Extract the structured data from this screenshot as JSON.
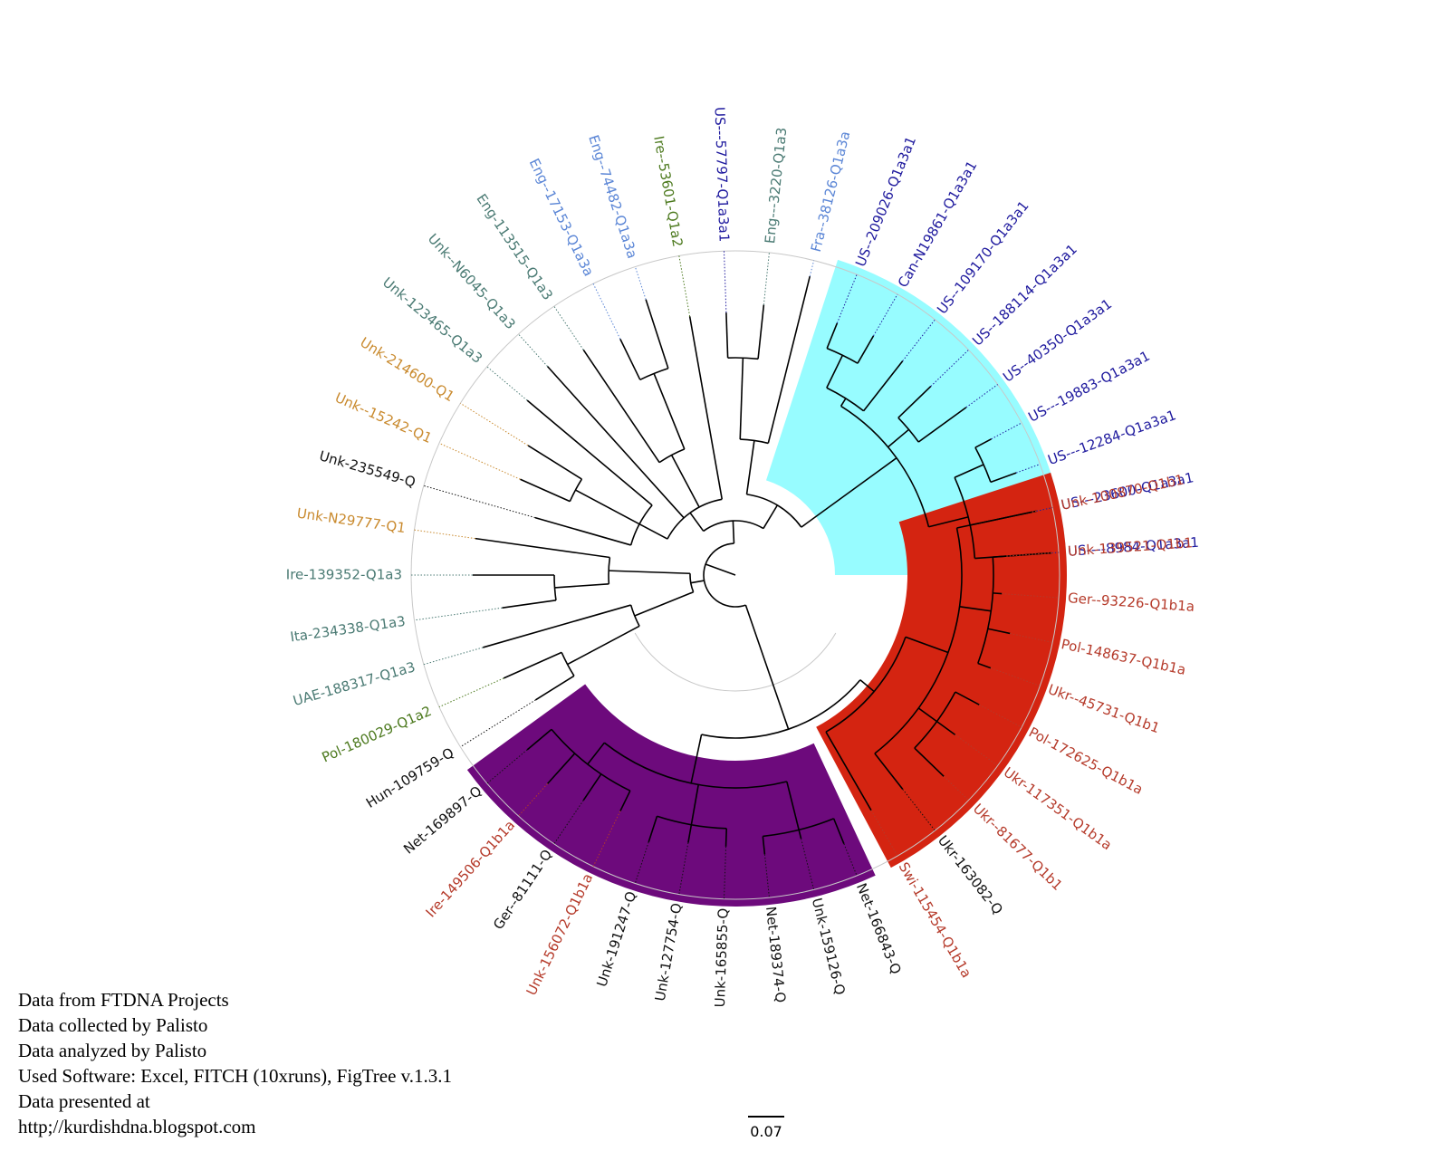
{
  "leaves": [
    {
      "label": "US----8984-Q1a3a1",
      "angle": -4,
      "color": "#1f1a9e"
    },
    {
      "label": "US---23600-Q1a3a1",
      "angle": -12,
      "color": "#1f1a9e"
    },
    {
      "label": "US---12284-Q1a3a1",
      "angle": -20,
      "color": "#1f1a9e"
    },
    {
      "label": "US---19883-Q1a3a1",
      "angle": -28,
      "color": "#1f1a9e"
    },
    {
      "label": "US--40350-Q1a3a1",
      "angle": -36,
      "color": "#1f1a9e"
    },
    {
      "label": "US--188114-Q1a3a1",
      "angle": -44,
      "color": "#1f1a9e"
    },
    {
      "label": "US--109170-Q1a3a1",
      "angle": -52,
      "color": "#1f1a9e"
    },
    {
      "label": "Can-N19861-Q1a3a1",
      "angle": -60,
      "color": "#1f1a9e"
    },
    {
      "label": "US--209026-Q1a3a1",
      "angle": -68,
      "color": "#1f1a9e"
    },
    {
      "label": "Fra--38126-Q1a3a",
      "angle": -76,
      "color": "#5b86d6"
    },
    {
      "label": "Eng---3220-Q1a3",
      "angle": -84,
      "color": "#4a7a73"
    },
    {
      "label": "US---57797-Q1a3a1",
      "angle": -92,
      "color": "#1f1a9e"
    },
    {
      "label": "Ire--53601-Q1a2",
      "angle": -100,
      "color": "#4d7a1f"
    },
    {
      "label": "Eng--74482-Q1a3a",
      "angle": -108,
      "color": "#5b86d6"
    },
    {
      "label": "Eng--17153-Q1a3a",
      "angle": -116,
      "color": "#5b86d6"
    },
    {
      "label": "Eng-113515-Q1a3",
      "angle": -124,
      "color": "#4a7a73"
    },
    {
      "label": "Unk--N6045-Q1a3",
      "angle": -132,
      "color": "#4a7a73"
    },
    {
      "label": "Unk-123465-Q1a3",
      "angle": -140,
      "color": "#4a7a73"
    },
    {
      "label": "Unk-214600-Q1",
      "angle": -148,
      "color": "#c98a2e"
    },
    {
      "label": "Unk--15242-Q1",
      "angle": -156,
      "color": "#c98a2e"
    },
    {
      "label": "Unk-235549-Q",
      "angle": -164,
      "color": "#111111"
    },
    {
      "label": "Unk-N29777-Q1",
      "angle": -172,
      "color": "#c98a2e"
    },
    {
      "label": "Ire-139352-Q1a3",
      "angle": -180,
      "color": "#4a7a73"
    },
    {
      "label": "Ita-234338-Q1a3",
      "angle": -188,
      "color": "#4a7a73"
    },
    {
      "label": "UAE-188317-Q1a3",
      "angle": -196,
      "color": "#4a7a73"
    },
    {
      "label": "Pol-180029-Q1a2",
      "angle": -204,
      "color": "#4d7a1f"
    },
    {
      "label": "Hun-109759-Q",
      "angle": -212,
      "color": "#111111"
    },
    {
      "label": "Net-169897-Q",
      "angle": -220,
      "color": "#111111"
    },
    {
      "label": "Ire-149506-Q1b1a",
      "angle": -228,
      "color": "#b53a2a"
    },
    {
      "label": "Ger--81111-Q",
      "angle": -236,
      "color": "#111111"
    },
    {
      "label": "Unk-156072-Q1b1a",
      "angle": -244,
      "color": "#b53a2a"
    },
    {
      "label": "Unk-191247-Q",
      "angle": -252,
      "color": "#111111"
    },
    {
      "label": "Unk-127754-Q",
      "angle": -260,
      "color": "#111111"
    },
    {
      "label": "Unk-165855-Q",
      "angle": -268,
      "color": "#111111"
    },
    {
      "label": "Net-189374-Q",
      "angle": -276,
      "color": "#111111"
    },
    {
      "label": "Unk-159126-Q",
      "angle": -284,
      "color": "#111111"
    },
    {
      "label": "Net-166843-Q",
      "angle": -292,
      "color": "#111111"
    },
    {
      "label": "Swi-115454-Q1b1a",
      "angle": -300,
      "color": "#b53a2a"
    },
    {
      "label": "Ukr-163082-Q",
      "angle": -308,
      "color": "#111111"
    },
    {
      "label": "Ukr--81677-Q1b1",
      "angle": -316,
      "color": "#b53a2a"
    },
    {
      "label": "Ukr-117351-Q1b1a",
      "angle": -324,
      "color": "#b53a2a"
    },
    {
      "label": "Pol-172625-Q1b1a",
      "angle": -332,
      "color": "#b53a2a"
    },
    {
      "label": "Ukr--45731-Q1b1",
      "angle": -340,
      "color": "#b53a2a"
    },
    {
      "label": "Pol-148637-Q1b1a",
      "angle": -348,
      "color": "#b53a2a"
    },
    {
      "label": "Ger--93226-Q1b1a",
      "angle": -356,
      "color": "#b53a2a"
    },
    {
      "label": "Unk-139521-Q1b1",
      "angle": -364,
      "color": "#b53a2a"
    },
    {
      "label": "Unk-100870-Q1b1",
      "angle": -372,
      "color": "#b53a2a"
    }
  ],
  "clades": [
    {
      "from": -72,
      "to": 0,
      "color": "#97fcff"
    },
    {
      "from": -298,
      "to": -378,
      "color": "#d42411"
    },
    {
      "from": -216,
      "to": -295,
      "color": "#6d0a7c"
    }
  ],
  "credits": [
    "Data from FTDNA Projects",
    "Data collected by Palisto",
    "Data analyzed by Palisto",
    "Used Software: Excel, FITCH (10xruns), FigTree v.1.3.1",
    "Data presented at",
    "http;//kurdishdna.blogspot.com"
  ],
  "scale_bar": {
    "label": "0.07"
  }
}
